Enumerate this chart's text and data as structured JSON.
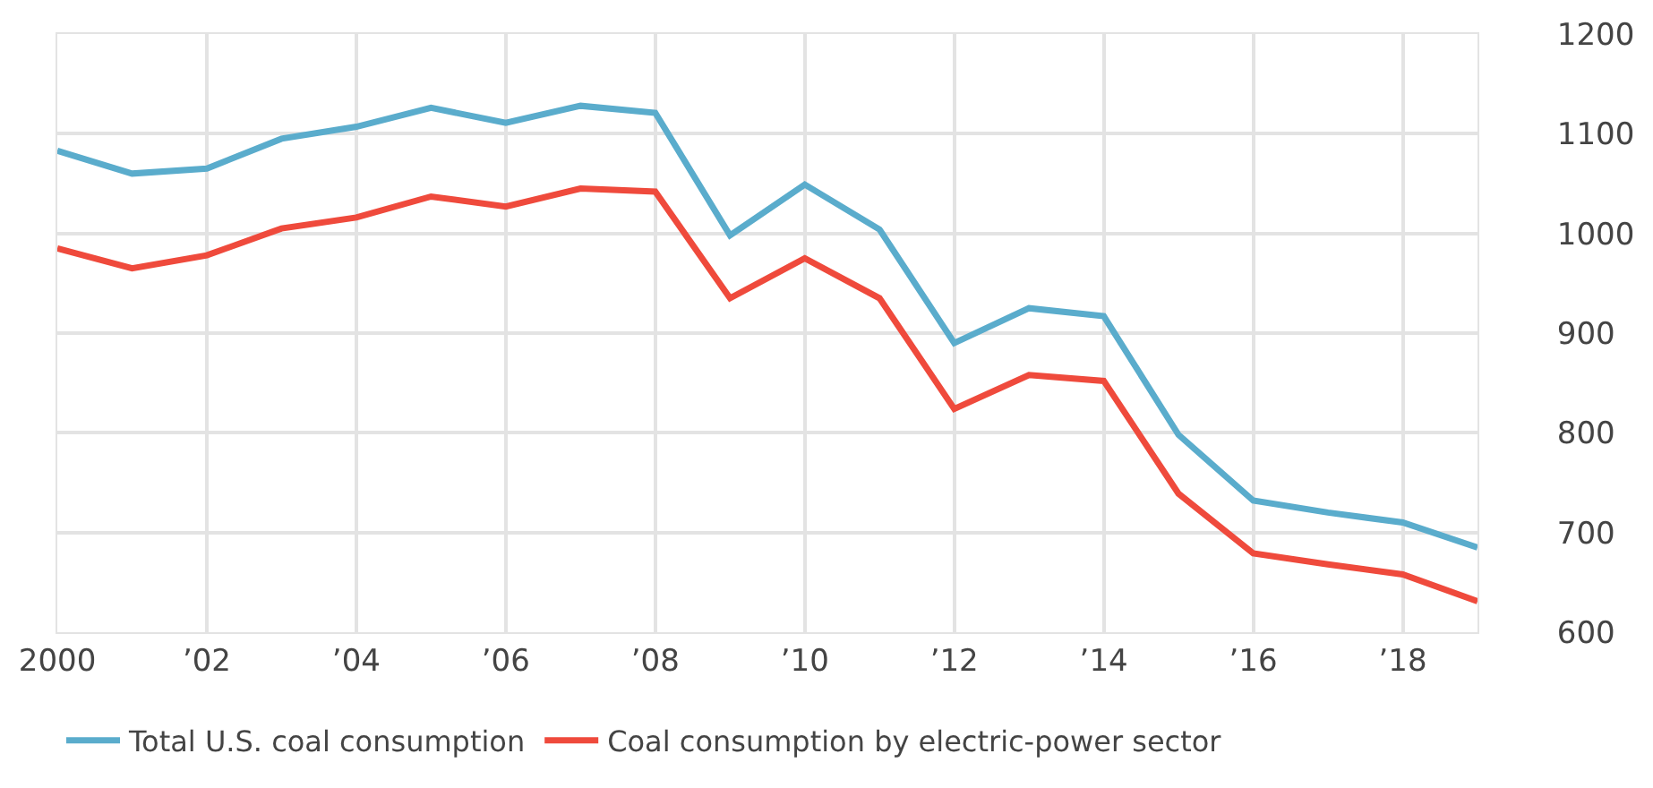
{
  "chart_data": {
    "type": "line",
    "x": [
      2000,
      2001,
      2002,
      2003,
      2004,
      2005,
      2006,
      2007,
      2008,
      2009,
      2010,
      2011,
      2012,
      2013,
      2014,
      2015,
      2016,
      2017,
      2018,
      2019
    ],
    "series": [
      {
        "name": "Total U.S. coal consumption",
        "color": "#5aaccc",
        "values": [
          1083,
          1060,
          1065,
          1095,
          1107,
          1126,
          1111,
          1128,
          1121,
          998,
          1049,
          1004,
          890,
          925,
          917,
          798,
          732,
          720,
          710,
          685
        ]
      },
      {
        "name": "Coal consumption by electric-power sector",
        "color": "#ef4a3c",
        "values": [
          985,
          965,
          978,
          1005,
          1016,
          1037,
          1027,
          1045,
          1042,
          935,
          975,
          935,
          824,
          858,
          852,
          739,
          679,
          668,
          658,
          631
        ]
      }
    ],
    "xlim": [
      2000,
      2019
    ],
    "xticks": [
      2000,
      {
        "value": 2002,
        "label": "’02"
      },
      {
        "value": 2004,
        "label": "’04"
      },
      {
        "value": 2006,
        "label": "’06"
      },
      {
        "value": 2008,
        "label": "’08"
      },
      {
        "value": 2010,
        "label": "’10"
      },
      {
        "value": 2012,
        "label": "’12"
      },
      {
        "value": 2014,
        "label": "’14"
      },
      {
        "value": 2016,
        "label": "’16"
      },
      {
        "value": 2018,
        "label": "’18"
      }
    ],
    "ylim": [
      600,
      1200
    ],
    "yticks": [
      600,
      700,
      800,
      900,
      1000,
      1100,
      1200
    ],
    "grid": true,
    "legend": "bottom",
    "marker": "none",
    "line_style": "solid"
  }
}
